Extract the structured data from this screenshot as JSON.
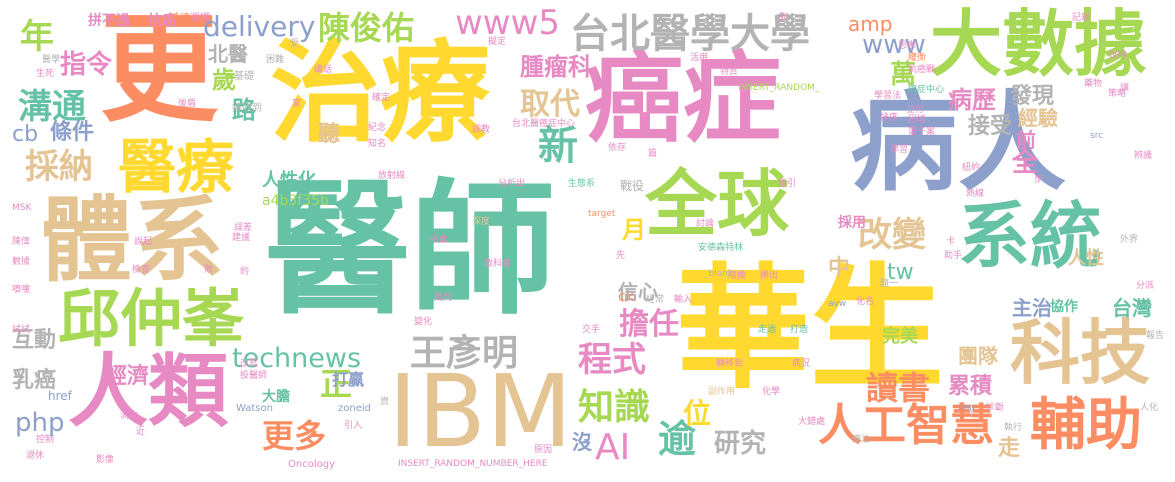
{
  "palette": [
    "#66c2a5",
    "#fc8d62",
    "#8da0cb",
    "#e78ac3",
    "#a6d854",
    "#ffd92f",
    "#e5c494",
    "#b3b3b3"
  ],
  "words": [
    {
      "text": "醫師",
      "color": "#66c2a5"
    },
    {
      "text": "華生",
      "color": "#ffd92f"
    },
    {
      "text": "IBM",
      "color": "#e5c494"
    },
    {
      "text": "治療",
      "color": "#ffd92f"
    },
    {
      "text": "癌症",
      "color": "#e78ac3"
    },
    {
      "text": "病人",
      "color": "#8da0cb"
    },
    {
      "text": "更",
      "color": "#fc8d62"
    },
    {
      "text": "體系",
      "color": "#e5c494"
    },
    {
      "text": "人類",
      "color": "#e78ac3"
    },
    {
      "text": "大數據",
      "color": "#a6d854"
    },
    {
      "text": "全球",
      "color": "#a6d854"
    },
    {
      "text": "系統",
      "color": "#66c2a5"
    },
    {
      "text": "科技",
      "color": "#e5c494"
    },
    {
      "text": "邱仲峯",
      "color": "#a6d854"
    },
    {
      "text": "醫療",
      "color": "#ffd92f"
    },
    {
      "text": "台北醫學大學",
      "color": "#b3b3b3"
    },
    {
      "text": "輔助",
      "color": "#fc8d62"
    },
    {
      "text": "人工智慧",
      "color": "#fc8d62"
    },
    {
      "text": "王彥明",
      "color": "#b3b3b3"
    },
    {
      "text": "陳俊佑",
      "color": "#a6d854"
    },
    {
      "text": "www5",
      "color": "#e78ac3"
    },
    {
      "text": "delivery",
      "color": "#8da0cb"
    },
    {
      "text": "technews",
      "color": "#66c2a5"
    },
    {
      "text": "採納",
      "color": "#e5c494"
    },
    {
      "text": "溝通",
      "color": "#66c2a5"
    },
    {
      "text": "知識",
      "color": "#a6d854"
    },
    {
      "text": "AI",
      "color": "#e78ac3"
    },
    {
      "text": "逾",
      "color": "#66c2a5"
    },
    {
      "text": "更多",
      "color": "#fc8d62"
    },
    {
      "text": "改變",
      "color": "#e5c494"
    },
    {
      "text": "程式",
      "color": "#e78ac3"
    },
    {
      "text": "讀書",
      "color": "#fc8d62"
    },
    {
      "text": "擔任",
      "color": "#e78ac3"
    },
    {
      "text": "經濟",
      "color": "#e78ac3"
    },
    {
      "text": "年",
      "color": "#a6d854"
    },
    {
      "text": "指令",
      "color": "#e78ac3"
    },
    {
      "text": "條件",
      "color": "#8da0cb"
    },
    {
      "text": "腫瘤科",
      "color": "#e78ac3"
    },
    {
      "text": "取代",
      "color": "#e5c494"
    },
    {
      "text": "新",
      "color": "#66c2a5"
    },
    {
      "text": "www",
      "color": "#8da0cb"
    },
    {
      "text": "amp",
      "color": "#fc8d62"
    },
    {
      "text": "php",
      "color": "#8da0cb"
    },
    {
      "text": "病歷",
      "color": "#e78ac3"
    },
    {
      "text": "發現",
      "color": "#b3b3b3"
    },
    {
      "text": "接受",
      "color": "#b3b3b3"
    },
    {
      "text": "經驗",
      "color": "#e5c494"
    },
    {
      "text": "主治",
      "color": "#8da0cb"
    },
    {
      "text": "台灣",
      "color": "#66c2a5"
    },
    {
      "text": "團隊",
      "color": "#e5c494"
    },
    {
      "text": "累積",
      "color": "#e78ac3"
    },
    {
      "text": "研究",
      "color": "#b3b3b3"
    },
    {
      "text": "位",
      "color": "#ffd92f"
    },
    {
      "text": "tw",
      "color": "#66c2a5"
    },
    {
      "text": "正",
      "color": "#a6d854"
    },
    {
      "text": "打贏",
      "color": "#8da0cb"
    },
    {
      "text": "乳癌",
      "color": "#b3b3b3"
    },
    {
      "text": "互動",
      "color": "#b3b3b3"
    },
    {
      "text": "cb",
      "color": "#8da0cb"
    },
    {
      "text": "歲",
      "color": "#a6d854"
    },
    {
      "text": "北醫",
      "color": "#b3b3b3"
    },
    {
      "text": "路",
      "color": "#66c2a5"
    },
    {
      "text": "萬",
      "color": "#a6d854"
    },
    {
      "text": "全",
      "color": "#e78ac3"
    },
    {
      "text": "前",
      "color": "#e78ac3"
    },
    {
      "text": "人性化",
      "color": "#66c2a5"
    },
    {
      "text": "a4b3f35b",
      "color": "#a6d854"
    },
    {
      "text": "聽",
      "color": "#e5c494"
    },
    {
      "text": "中",
      "color": "#e5c494"
    },
    {
      "text": "信心",
      "color": "#b3b3b3"
    },
    {
      "text": "月",
      "color": "#ffd92f"
    },
    {
      "text": "人性",
      "color": "#e5c494"
    },
    {
      "text": "拼不過",
      "color": "#e78ac3"
    },
    {
      "text": "抗癌",
      "color": "#e78ac3"
    },
    {
      "text": "完美",
      "color": "#a6d854"
    },
    {
      "text": "走",
      "color": "#e5c494"
    },
    {
      "text": "協作",
      "color": "#66c2a5"
    },
    {
      "text": "採用",
      "color": "#e78ac3"
    },
    {
      "text": "沒",
      "color": "#8da0cb"
    },
    {
      "text": "ck",
      "color": "#fc8d62"
    },
    {
      "text": "href",
      "color": "#8da0cb"
    },
    {
      "text": "大膽",
      "color": "#66c2a5"
    },
    {
      "text": "持續",
      "color": "#fc8d62"
    },
    {
      "text": "選擇",
      "color": "#e78ac3"
    },
    {
      "text": "醫學",
      "color": "#b3b3b3"
    },
    {
      "text": "生死",
      "color": "#e78ac3"
    },
    {
      "text": "基礎",
      "color": "#b3b3b3"
    },
    {
      "text": "接收到",
      "color": "#b3b3b3"
    },
    {
      "text": "Watson",
      "color": "#8da0cb"
    },
    {
      "text": "zoneid",
      "color": "#8da0cb"
    },
    {
      "text": "Oncology",
      "color": "#e78ac3"
    },
    {
      "text": "INSERT_RANDOM_NUMBER_HERE",
      "color": "#e78ac3"
    },
    {
      "text": "INSERT_RANDOM_",
      "color": "#a6d854"
    },
    {
      "text": "台北醫癌症中心",
      "color": "#e78ac3"
    },
    {
      "text": "癌症中心",
      "color": "#66c2a5"
    },
    {
      "text": "安德森特林",
      "color": "#66c2a5"
    },
    {
      "text": "_blank",
      "color": "#b3b3b3"
    },
    {
      "text": "target",
      "color": "#fc8d62"
    },
    {
      "text": "MSK",
      "color": "#e78ac3"
    },
    {
      "text": "avw",
      "color": "#8da0cb"
    },
    {
      "text": "img",
      "color": "#8da0cb"
    },
    {
      "text": "src",
      "color": "#8da0cb"
    },
    {
      "text": "副作用",
      "color": "#e5c494"
    },
    {
      "text": "化學",
      "color": "#e78ac3"
    },
    {
      "text": "放射線",
      "color": "#e78ac3"
    },
    {
      "text": "深度",
      "color": "#e5c494"
    },
    {
      "text": "分析出",
      "color": "#e78ac3"
    },
    {
      "text": "生態系",
      "color": "#66c2a5"
    },
    {
      "text": "指引",
      "color": "#e78ac3"
    },
    {
      "text": "戰役",
      "color": "#b3b3b3"
    },
    {
      "text": "轉移到",
      "color": "#e78ac3"
    },
    {
      "text": "病況",
      "color": "#e78ac3"
    },
    {
      "text": "特質",
      "color": "#e78ac3"
    },
    {
      "text": "抗癌戰",
      "color": "#e78ac3"
    },
    {
      "text": "權衡",
      "color": "#fc8d62"
    },
    {
      "text": "學習法",
      "color": "#e78ac3"
    },
    {
      "text": "電子案",
      "color": "#e78ac3"
    },
    {
      "text": "教科書",
      "color": "#e78ac3"
    },
    {
      "text": "執行",
      "color": "#b3b3b3"
    },
    {
      "text": "外界",
      "color": "#b3b3b3"
    },
    {
      "text": "分派",
      "color": "#e78ac3"
    },
    {
      "text": "報告",
      "color": "#b3b3b3"
    },
    {
      "text": "療法",
      "color": "#b3b3b3"
    },
    {
      "text": "診斷",
      "color": "#e78ac3"
    },
    {
      "text": "資",
      "color": "#b3b3b3"
    },
    {
      "text": "控制",
      "color": "#e78ac3"
    },
    {
      "text": "消化",
      "color": "#e78ac3"
    },
    {
      "text": "近",
      "color": "#e78ac3"
    },
    {
      "text": "影像",
      "color": "#e78ac3"
    },
    {
      "text": "退休",
      "color": "#e78ac3"
    },
    {
      "text": "誤差",
      "color": "#e78ac3"
    },
    {
      "text": "改寫",
      "color": "#e78ac3"
    },
    {
      "text": "投醫師",
      "color": "#e78ac3"
    },
    {
      "text": "試試",
      "color": "#e78ac3"
    },
    {
      "text": "噴嚏",
      "color": "#e78ac3"
    },
    {
      "text": "數據",
      "color": "#e78ac3"
    },
    {
      "text": "陳偉",
      "color": "#e78ac3"
    },
    {
      "text": "說起",
      "color": "#e78ac3"
    },
    {
      "text": "建議",
      "color": "#e78ac3"
    },
    {
      "text": "依此",
      "color": "#e78ac3"
    },
    {
      "text": "檢查",
      "color": "#e78ac3"
    },
    {
      "text": "約",
      "color": "#e78ac3"
    },
    {
      "text": "敗",
      "color": "#e78ac3"
    },
    {
      "text": "引入",
      "color": "#e78ac3"
    },
    {
      "text": "變化",
      "color": "#e78ac3"
    },
    {
      "text": "批判",
      "color": "#e78ac3"
    },
    {
      "text": "交手",
      "color": "#e78ac3"
    },
    {
      "text": "走過",
      "color": "#66c2a5"
    },
    {
      "text": "打造",
      "color": "#66c2a5"
    },
    {
      "text": "化名",
      "color": "#e78ac3"
    },
    {
      "text": "隨一",
      "color": "#b3b3b3"
    },
    {
      "text": "輸入",
      "color": "#e78ac3"
    },
    {
      "text": "經常",
      "color": "#b3b3b3"
    },
    {
      "text": "原因",
      "color": "#e78ac3"
    },
    {
      "text": "大錯處",
      "color": "#e78ac3"
    },
    {
      "text": "人化",
      "color": "#b3b3b3"
    },
    {
      "text": "例",
      "color": "#e78ac3"
    },
    {
      "text": "效用",
      "color": "#e78ac3"
    },
    {
      "text": "藥物",
      "color": "#e78ac3"
    },
    {
      "text": "策略",
      "color": "#e78ac3"
    },
    {
      "text": "紐約",
      "color": "#e78ac3"
    },
    {
      "text": "熱線",
      "color": "#e78ac3"
    },
    {
      "text": "辨識",
      "color": "#e78ac3"
    },
    {
      "text": "讓",
      "color": "#e78ac3"
    },
    {
      "text": "記錄",
      "color": "#e78ac3"
    },
    {
      "text": "困難",
      "color": "#b3b3b3"
    },
    {
      "text": "受",
      "color": "#b3b3b3"
    },
    {
      "text": "講話",
      "color": "#e78ac3"
    },
    {
      "text": "擬定",
      "color": "#e78ac3"
    },
    {
      "text": "紀念",
      "color": "#e78ac3"
    },
    {
      "text": "確定",
      "color": "#e78ac3"
    },
    {
      "text": "知名",
      "color": "#e78ac3"
    },
    {
      "text": "依存",
      "color": "#e78ac3"
    },
    {
      "text": "後盾",
      "color": "#e78ac3"
    },
    {
      "text": "調教",
      "color": "#e78ac3"
    },
    {
      "text": "並行",
      "color": "#e78ac3"
    },
    {
      "text": "篇",
      "color": "#e78ac3"
    },
    {
      "text": "恩惠",
      "color": "#e78ac3"
    },
    {
      "text": "卡",
      "color": "#e78ac3"
    },
    {
      "text": "先",
      "color": "#e78ac3"
    },
    {
      "text": "助手",
      "color": "#e78ac3"
    },
    {
      "text": "步",
      "color": "#e78ac3"
    },
    {
      "text": "學習",
      "color": "#e78ac3"
    },
    {
      "text": "討論",
      "color": "#e78ac3"
    },
    {
      "text": "隨機",
      "color": "#e78ac3"
    },
    {
      "text": "勝出",
      "color": "#e78ac3"
    },
    {
      "text": "家",
      "color": "#e78ac3"
    },
    {
      "text": "活用",
      "color": "#e78ac3"
    },
    {
      "text": "排序",
      "color": "#e78ac3"
    },
    {
      "text": "困境",
      "color": "#e78ac3"
    }
  ]
}
